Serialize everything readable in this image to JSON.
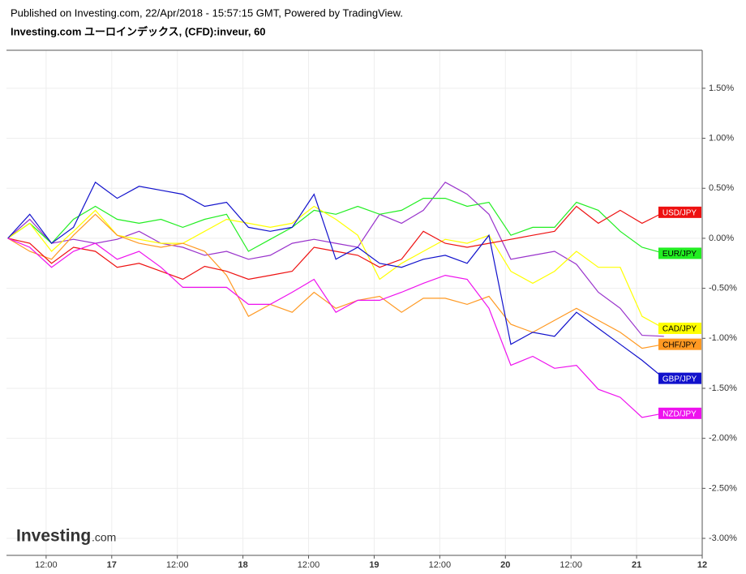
{
  "chart_data": {
    "type": "line",
    "subtitle": "Published on Investing.com, 22/Apr/2018 - 15:57:15 GMT, Powered by TradingView.",
    "title": "Investing.com ユーロインデックス, (CFD):inveur, 60",
    "logo": {
      "name": "Investing",
      "suffix": ".com"
    },
    "x": [
      5,
      9,
      13,
      17,
      21,
      25,
      29,
      33,
      37,
      41,
      45,
      49,
      53,
      57,
      61,
      65,
      69,
      73,
      77,
      81,
      85,
      89,
      93,
      97,
      101,
      105,
      109,
      113,
      117,
      121,
      125
    ],
    "xlim": [
      4.75,
      132
    ],
    "xticks": [
      {
        "value": 12,
        "label": "12:00"
      },
      {
        "value": 24,
        "label": "17"
      },
      {
        "value": 36,
        "label": "12:00"
      },
      {
        "value": 48,
        "label": "18"
      },
      {
        "value": 60,
        "label": "12:00"
      },
      {
        "value": 72,
        "label": "19"
      },
      {
        "value": 84,
        "label": "12:00"
      },
      {
        "value": 96,
        "label": "20"
      },
      {
        "value": 108,
        "label": "12:00"
      },
      {
        "value": 120,
        "label": "21"
      },
      {
        "value": 132,
        "label": "12"
      }
    ],
    "ylim": [
      -3.17,
      1.88
    ],
    "yticks": [
      {
        "value": 1.5,
        "label": "1.50%"
      },
      {
        "value": 1.0,
        "label": "1.00%"
      },
      {
        "value": 0.5,
        "label": "0.50%"
      },
      {
        "value": 0,
        "label": "0.00%"
      },
      {
        "value": -0.5,
        "label": "-0.50%"
      },
      {
        "value": -1.0,
        "label": "-1.00%"
      },
      {
        "value": -1.5,
        "label": "-1.50%"
      },
      {
        "value": -2.0,
        "label": "-2.00%"
      },
      {
        "value": -2.5,
        "label": "-2.50%"
      },
      {
        "value": -3.0,
        "label": "-3.00%"
      }
    ],
    "grid": true,
    "series": [
      {
        "color": "#9933cc",
        "values": [
          0,
          0.19,
          -0.05,
          -0.01,
          -0.05,
          -0.01,
          0.07,
          -0.05,
          -0.09,
          -0.17,
          -0.13,
          -0.21,
          -0.17,
          -0.05,
          -0.01,
          -0.05,
          -0.09,
          0.24,
          0.15,
          0.28,
          0.56,
          0.44,
          0.24,
          -0.21,
          -0.17,
          -0.13,
          -0.26,
          -0.54,
          -0.7,
          -0.97,
          -0.98
        ]
      },
      {
        "name": "EUR/JPY",
        "color": "#22ee22",
        "values": [
          0,
          0.15,
          -0.05,
          0.19,
          0.32,
          0.19,
          0.15,
          0.19,
          0.11,
          0.19,
          0.24,
          -0.13,
          -0.01,
          0.11,
          0.28,
          0.24,
          0.32,
          0.24,
          0.28,
          0.4,
          0.4,
          0.32,
          0.36,
          0.03,
          0.11,
          0.11,
          0.36,
          0.28,
          0.07,
          -0.09,
          -0.15
        ]
      },
      {
        "name": "CAD/JPY",
        "color": "#ffff00",
        "values": [
          0,
          0.15,
          -0.13,
          0.07,
          0.28,
          0.03,
          -0.01,
          -0.05,
          -0.05,
          0.07,
          0.19,
          0.15,
          0.11,
          0.15,
          0.32,
          0.19,
          0.03,
          -0.41,
          -0.25,
          -0.13,
          -0.01,
          -0.05,
          0.03,
          -0.33,
          -0.45,
          -0.33,
          -0.13,
          -0.29,
          -0.29,
          -0.78,
          -0.9
        ]
      },
      {
        "name": "CHF/JPY",
        "color": "#ff9922",
        "values": [
          0,
          -0.13,
          -0.21,
          0.03,
          0.24,
          0.03,
          -0.05,
          -0.09,
          -0.05,
          -0.13,
          -0.37,
          -0.78,
          -0.66,
          -0.74,
          -0.54,
          -0.7,
          -0.62,
          -0.58,
          -0.74,
          -0.6,
          -0.6,
          -0.66,
          -0.58,
          -0.86,
          -0.94,
          -0.82,
          -0.7,
          -0.82,
          -0.94,
          -1.1,
          -1.06
        ]
      },
      {
        "name": "USD/JPY",
        "color": "#ee1111",
        "values": [
          0,
          -0.05,
          -0.25,
          -0.09,
          -0.13,
          -0.29,
          -0.25,
          -0.33,
          -0.41,
          -0.28,
          -0.33,
          -0.41,
          -0.37,
          -0.33,
          -0.09,
          -0.13,
          -0.17,
          -0.29,
          -0.21,
          0.07,
          -0.05,
          -0.09,
          -0.05,
          -0.01,
          0.03,
          0.07,
          0.32,
          0.15,
          0.28,
          0.15,
          0.26
        ]
      },
      {
        "name": "GBP/JPY",
        "color": "#1111cc",
        "values": [
          0,
          0.24,
          -0.05,
          0.11,
          0.56,
          0.4,
          0.52,
          0.48,
          0.44,
          0.32,
          0.36,
          0.11,
          0.07,
          0.11,
          0.44,
          -0.21,
          -0.09,
          -0.25,
          -0.29,
          -0.21,
          -0.17,
          -0.25,
          0.03,
          -1.06,
          -0.94,
          -0.98,
          -0.74,
          -0.9,
          -1.06,
          -1.22,
          -1.4
        ]
      },
      {
        "name": "NZD/JPY",
        "color": "#ee11ee",
        "values": [
          0,
          -0.09,
          -0.29,
          -0.13,
          -0.05,
          -0.21,
          -0.13,
          -0.29,
          -0.49,
          -0.49,
          -0.49,
          -0.66,
          -0.66,
          -0.54,
          -0.41,
          -0.74,
          -0.62,
          -0.62,
          -0.54,
          -0.45,
          -0.37,
          -0.41,
          -0.7,
          -1.27,
          -1.18,
          -1.3,
          -1.27,
          -1.51,
          -1.59,
          -1.79,
          -1.75
        ]
      }
    ]
  }
}
